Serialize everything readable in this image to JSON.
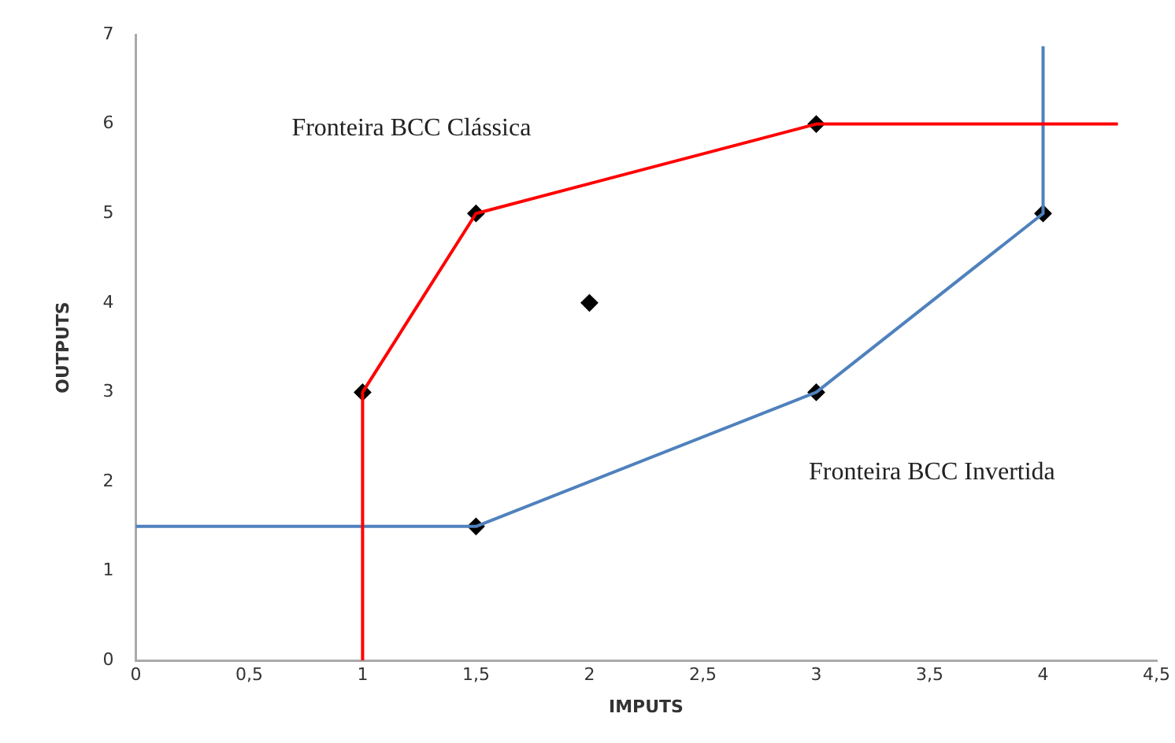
{
  "chart_data": {
    "type": "line",
    "xlabel": "IMPUTS",
    "ylabel": "OUTPUTS",
    "series": [
      {
        "name": "Fronteira BCC Clássica",
        "type": "line",
        "color": "#ff0000",
        "marker": "none",
        "x": [
          1,
          1,
          1.5,
          3,
          4.33
        ],
        "values": [
          0,
          3,
          5,
          6,
          6
        ]
      },
      {
        "name": "Fronteira BCC Invertida",
        "type": "line",
        "color": "#4f81bd",
        "marker": "none",
        "x": [
          0,
          1.5,
          3,
          4,
          4
        ],
        "values": [
          1.5,
          1.5,
          3,
          5,
          6.87
        ]
      },
      {
        "type": "scatter",
        "color": "#000000",
        "marker": "diamond",
        "x": [
          1,
          1.5,
          3,
          2,
          1.5,
          3,
          4
        ],
        "values": [
          3,
          5,
          6,
          4,
          1.5,
          3,
          5
        ]
      }
    ],
    "xlim": [
      0,
      4.5
    ],
    "xticks": [
      0,
      {
        "value": 0.5,
        "label": "0,5"
      },
      1,
      {
        "value": 1.5,
        "label": "1,5"
      },
      2,
      {
        "value": 2.5,
        "label": "2,5"
      },
      3,
      {
        "value": 3.5,
        "label": "3,5"
      },
      4,
      {
        "value": 4.5,
        "label": "4,5"
      }
    ],
    "ylim": [
      0,
      7
    ],
    "yticks": [
      0,
      1,
      2,
      3,
      4,
      5,
      6,
      7
    ],
    "grid": false,
    "legend": false
  }
}
